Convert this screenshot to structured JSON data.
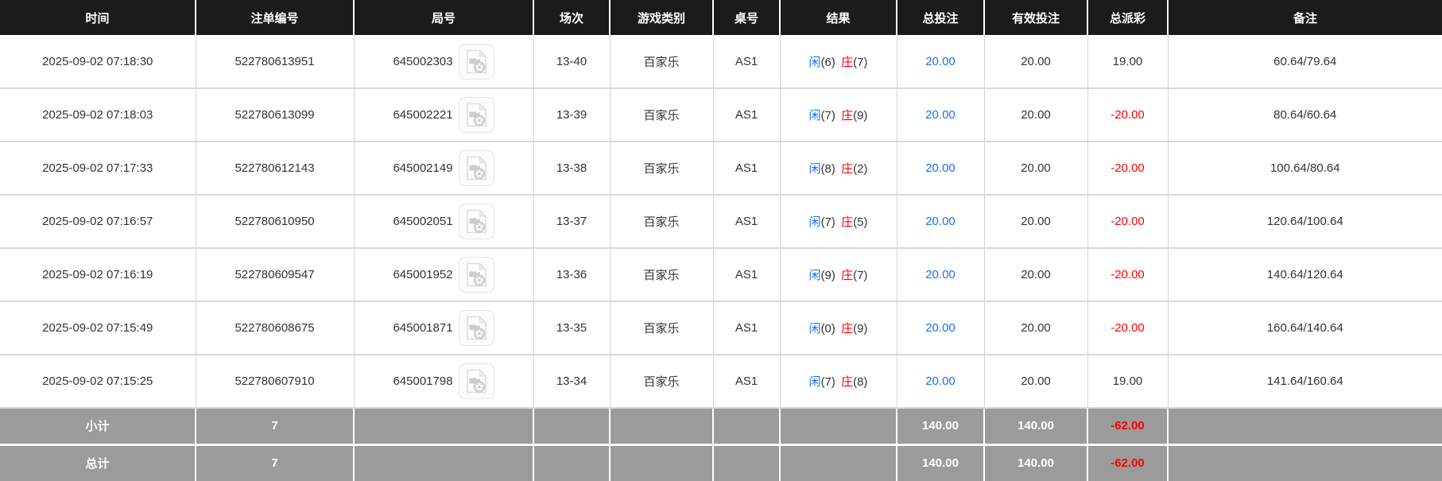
{
  "colors": {
    "header_bg": "#1b1b1b",
    "summary_bg": "#9b9b9b",
    "link_blue": "#1e6ef5",
    "player_blue": "#1e6ef5",
    "banker_red": "#ff0000",
    "negative_red": "#ff0000"
  },
  "icons": {
    "round_video": "video-file-icon"
  },
  "table": {
    "columns": [
      "时间",
      "注单编号",
      "局号",
      "场次",
      "游戏类别",
      "桌号",
      "结果",
      "总投注",
      "有效投注",
      "总派彩",
      "备注"
    ],
    "rows": [
      {
        "time": "2025-09-02 07:18:30",
        "bet_id": "522780613951",
        "round_no": "645002303",
        "session": "13-40",
        "game_type": "百家乐",
        "table_no": "AS1",
        "result": {
          "p_label": "闲",
          "p_score": "(6)",
          "b_label": "庄",
          "b_score": "(7)"
        },
        "total_bet": "20.00",
        "valid_bet": "20.00",
        "payout": "19.00",
        "remark": "60.64/79.64"
      },
      {
        "time": "2025-09-02 07:18:03",
        "bet_id": "522780613099",
        "round_no": "645002221",
        "session": "13-39",
        "game_type": "百家乐",
        "table_no": "AS1",
        "result": {
          "p_label": "闲",
          "p_score": "(7)",
          "b_label": "庄",
          "b_score": "(9)"
        },
        "total_bet": "20.00",
        "valid_bet": "20.00",
        "payout": "-20.00",
        "remark": "80.64/60.64"
      },
      {
        "time": "2025-09-02 07:17:33",
        "bet_id": "522780612143",
        "round_no": "645002149",
        "session": "13-38",
        "game_type": "百家乐",
        "table_no": "AS1",
        "result": {
          "p_label": "闲",
          "p_score": "(8)",
          "b_label": "庄",
          "b_score": "(2)"
        },
        "total_bet": "20.00",
        "valid_bet": "20.00",
        "payout": "-20.00",
        "remark": "100.64/80.64"
      },
      {
        "time": "2025-09-02 07:16:57",
        "bet_id": "522780610950",
        "round_no": "645002051",
        "session": "13-37",
        "game_type": "百家乐",
        "table_no": "AS1",
        "result": {
          "p_label": "闲",
          "p_score": "(7)",
          "b_label": "庄",
          "b_score": "(5)"
        },
        "total_bet": "20.00",
        "valid_bet": "20.00",
        "payout": "-20.00",
        "remark": "120.64/100.64"
      },
      {
        "time": "2025-09-02 07:16:19",
        "bet_id": "522780609547",
        "round_no": "645001952",
        "session": "13-36",
        "game_type": "百家乐",
        "table_no": "AS1",
        "result": {
          "p_label": "闲",
          "p_score": "(9)",
          "b_label": "庄",
          "b_score": "(7)"
        },
        "total_bet": "20.00",
        "valid_bet": "20.00",
        "payout": "-20.00",
        "remark": "140.64/120.64"
      },
      {
        "time": "2025-09-02 07:15:49",
        "bet_id": "522780608675",
        "round_no": "645001871",
        "session": "13-35",
        "game_type": "百家乐",
        "table_no": "AS1",
        "result": {
          "p_label": "闲",
          "p_score": "(0)",
          "b_label": "庄",
          "b_score": "(9)"
        },
        "total_bet": "20.00",
        "valid_bet": "20.00",
        "payout": "-20.00",
        "remark": "160.64/140.64"
      },
      {
        "time": "2025-09-02 07:15:25",
        "bet_id": "522780607910",
        "round_no": "645001798",
        "session": "13-34",
        "game_type": "百家乐",
        "table_no": "AS1",
        "result": {
          "p_label": "闲",
          "p_score": "(7)",
          "b_label": "庄",
          "b_score": "(8)"
        },
        "total_bet": "20.00",
        "valid_bet": "20.00",
        "payout": "19.00",
        "remark": "141.64/160.64"
      }
    ],
    "subtotal": {
      "label": "小计",
      "count": "7",
      "total_bet": "140.00",
      "valid_bet": "140.00",
      "payout": "-62.00",
      "remark": ""
    },
    "total": {
      "label": "总计",
      "count": "7",
      "total_bet": "140.00",
      "valid_bet": "140.00",
      "payout": "-62.00",
      "remark": ""
    }
  }
}
